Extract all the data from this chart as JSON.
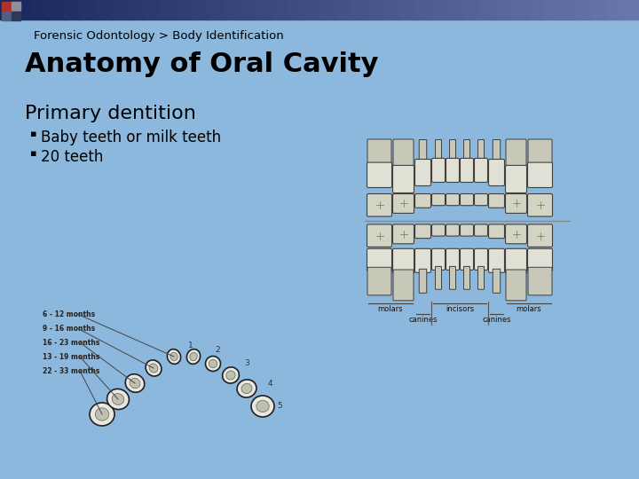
{
  "bg_color": "#8bb8dc",
  "header_text": "Forensic Odontology > Body Identification",
  "header_fontsize": 9.5,
  "title_text": "Anatomy of Oral Cavity",
  "title_fontsize": 22,
  "subtitle_text": "Primary dentition",
  "subtitle_fontsize": 16,
  "bullets": [
    "Baby teeth or milk teeth",
    "20 teeth"
  ],
  "bullet_fontsize": 12,
  "bullet_symbol": "▪",
  "top_bar_dark": "#1a2a60",
  "top_bar_mid": "#2a4090",
  "top_bar_light": "#7090c0",
  "sq_red": "#b03030",
  "sq_gray": "#909098",
  "sq_blue1": "#506080",
  "sq_blue2": "#303858"
}
